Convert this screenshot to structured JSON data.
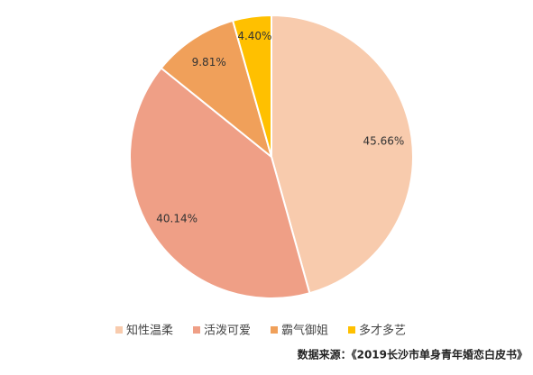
{
  "chart_data": {
    "type": "pie",
    "categories": [
      "知性温柔",
      "活泼可爱",
      "霸气御姐",
      "多才多艺"
    ],
    "values": [
      45.66,
      40.14,
      9.81,
      4.4
    ],
    "value_labels": [
      "45.66%",
      "40.14%",
      "9.81%",
      "4.40%"
    ],
    "colors": [
      "#f8cbad",
      "#ef9f86",
      "#f0a05a",
      "#ffc000"
    ],
    "legend": "bottom",
    "source": "数据来源：《2019长沙市单身青年婚恋白皮书》"
  }
}
